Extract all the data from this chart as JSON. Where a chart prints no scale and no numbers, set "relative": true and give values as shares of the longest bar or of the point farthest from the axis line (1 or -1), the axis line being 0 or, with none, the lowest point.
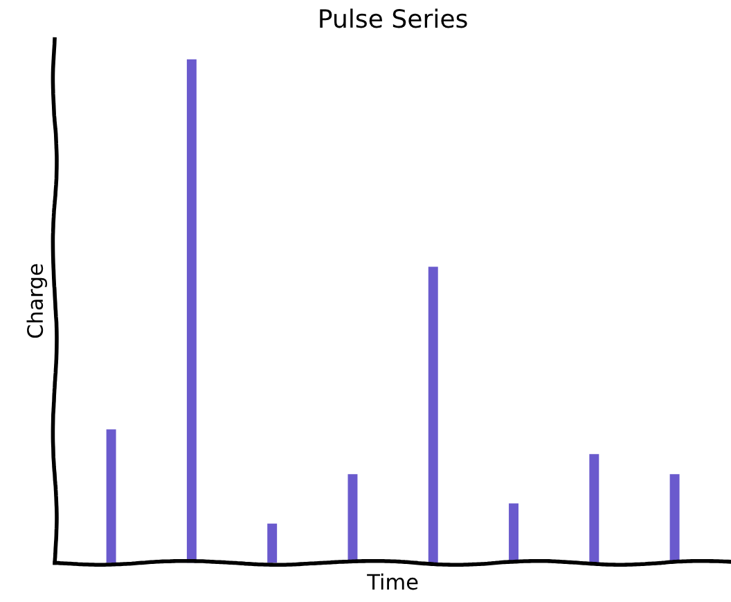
{
  "chart_data": {
    "type": "bar",
    "title": "Pulse Series",
    "xlabel": "Time",
    "ylabel": "Charge",
    "relative": true,
    "tick_labels": false,
    "categories": [
      null,
      null,
      null,
      null,
      null,
      null,
      null,
      null
    ],
    "values": [
      0.265,
      1,
      0.078,
      0.176,
      0.588,
      0.118,
      0.216,
      0.176
    ],
    "color": "#6a5acd"
  }
}
